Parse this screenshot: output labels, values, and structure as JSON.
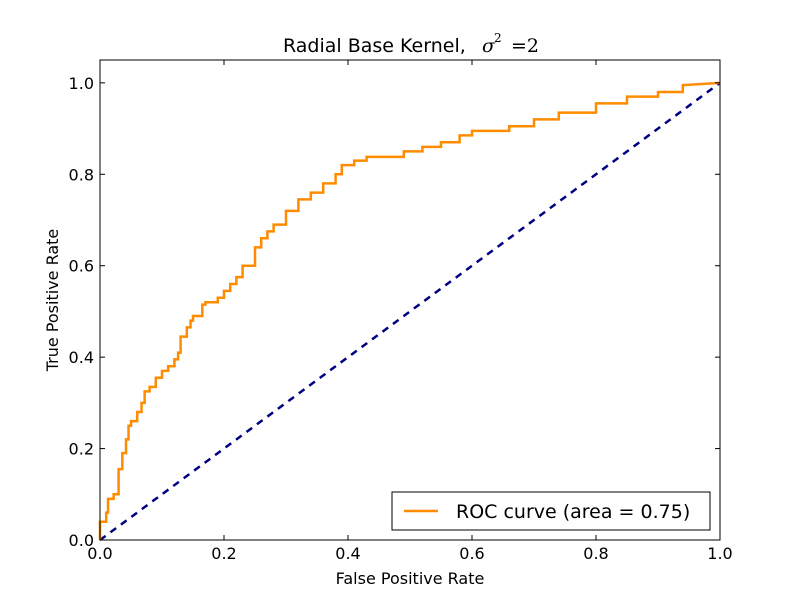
{
  "chart_data": {
    "type": "line",
    "title": "Radial Base Kernel, ",
    "title_math_symbol": "σ",
    "title_math_exponent": "2",
    "title_math_rest": "=2",
    "xlabel": "False Positive Rate",
    "ylabel": "True Positive Rate",
    "xlim": [
      0.0,
      1.0
    ],
    "ylim": [
      0.0,
      1.05
    ],
    "xticks": [
      "0.0",
      "0.2",
      "0.4",
      "0.6",
      "0.8",
      "1.0"
    ],
    "yticks": [
      "0.0",
      "0.2",
      "0.4",
      "0.6",
      "0.8",
      "1.0"
    ],
    "grid": false,
    "legend_position": "lower-right",
    "series": [
      {
        "name": "ROC curve (area = 0.75)",
        "color": "#ff8c00",
        "style": "solid",
        "x": [
          0.0,
          0.0,
          0.01,
          0.01,
          0.013,
          0.013,
          0.022,
          0.022,
          0.03,
          0.03,
          0.036,
          0.036,
          0.042,
          0.042,
          0.046,
          0.046,
          0.05,
          0.05,
          0.06,
          0.06,
          0.067,
          0.067,
          0.072,
          0.072,
          0.08,
          0.08,
          0.09,
          0.09,
          0.1,
          0.1,
          0.11,
          0.11,
          0.12,
          0.12,
          0.126,
          0.126,
          0.13,
          0.13,
          0.14,
          0.14,
          0.146,
          0.146,
          0.15,
          0.15,
          0.165,
          0.165,
          0.17,
          0.17,
          0.19,
          0.19,
          0.2,
          0.2,
          0.21,
          0.21,
          0.22,
          0.22,
          0.23,
          0.23,
          0.25,
          0.25,
          0.26,
          0.26,
          0.27,
          0.27,
          0.28,
          0.28,
          0.3,
          0.3,
          0.32,
          0.32,
          0.34,
          0.34,
          0.36,
          0.36,
          0.38,
          0.38,
          0.39,
          0.39,
          0.41,
          0.41,
          0.43,
          0.43,
          0.49,
          0.49,
          0.52,
          0.52,
          0.55,
          0.55,
          0.58,
          0.58,
          0.6,
          0.6,
          0.66,
          0.66,
          0.7,
          0.7,
          0.74,
          0.74,
          0.8,
          0.8,
          0.85,
          0.85,
          0.9,
          0.9,
          0.94,
          0.94,
          1.0
        ],
        "y": [
          0.0,
          0.04,
          0.04,
          0.06,
          0.06,
          0.09,
          0.09,
          0.1,
          0.1,
          0.155,
          0.155,
          0.19,
          0.19,
          0.22,
          0.22,
          0.25,
          0.25,
          0.26,
          0.26,
          0.28,
          0.28,
          0.3,
          0.3,
          0.325,
          0.325,
          0.335,
          0.335,
          0.355,
          0.355,
          0.37,
          0.37,
          0.38,
          0.38,
          0.395,
          0.395,
          0.41,
          0.41,
          0.445,
          0.445,
          0.465,
          0.465,
          0.48,
          0.48,
          0.49,
          0.49,
          0.515,
          0.515,
          0.52,
          0.52,
          0.53,
          0.53,
          0.545,
          0.545,
          0.56,
          0.56,
          0.575,
          0.575,
          0.6,
          0.6,
          0.64,
          0.64,
          0.66,
          0.66,
          0.675,
          0.675,
          0.69,
          0.69,
          0.72,
          0.72,
          0.745,
          0.745,
          0.76,
          0.76,
          0.78,
          0.78,
          0.8,
          0.8,
          0.82,
          0.82,
          0.83,
          0.83,
          0.838,
          0.838,
          0.85,
          0.85,
          0.86,
          0.86,
          0.87,
          0.87,
          0.885,
          0.885,
          0.895,
          0.895,
          0.905,
          0.905,
          0.92,
          0.92,
          0.935,
          0.935,
          0.955,
          0.955,
          0.97,
          0.97,
          0.98,
          0.98,
          0.995,
          1.0
        ]
      },
      {
        "name": "",
        "color": "#000080",
        "style": "dashed",
        "x": [
          0.0,
          1.0
        ],
        "y": [
          0.0,
          1.0
        ]
      }
    ],
    "legend_entries": [
      "ROC curve (area = 0.75)"
    ]
  }
}
